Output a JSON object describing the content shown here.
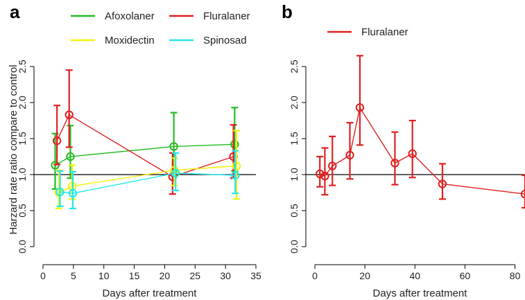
{
  "chart_data": [
    {
      "panel_label": "a",
      "type": "line",
      "xlabel": "Days after treatment",
      "ylabel": "Harzard rate ratio compare to control",
      "xlim": [
        0,
        35
      ],
      "ylim": [
        0,
        2.5
      ],
      "x_ticks": [
        "0",
        "5",
        "10",
        "15",
        "20",
        "25",
        "30",
        "35"
      ],
      "y_ticks": [
        "0.0",
        "0.5",
        "1.0",
        "1.5",
        "2.0",
        "2.5"
      ],
      "reference_line": 1.0,
      "grid": false,
      "legend_position": "top",
      "series": [
        {
          "name": "Afoxolaner",
          "color": "#22bb22",
          "x": [
            2,
            4.5,
            21.5,
            31.5
          ],
          "y": [
            1.13,
            1.25,
            1.39,
            1.42
          ],
          "lower": [
            0.8,
            0.95,
            1.04,
            1.05
          ],
          "upper": [
            1.57,
            1.68,
            1.86,
            1.93
          ]
        },
        {
          "name": "Fluralaner",
          "color": "#e02020",
          "x": [
            2.3,
            4.3,
            21.3,
            31.3
          ],
          "y": [
            1.47,
            1.83,
            0.97,
            1.25
          ],
          "lower": [
            1.14,
            1.38,
            0.73,
            0.95
          ],
          "upper": [
            1.96,
            2.45,
            1.3,
            1.69
          ]
        },
        {
          "name": "Moxidectin",
          "color": "#f2f20a",
          "x": [
            2.6,
            4.8,
            21.6,
            31.8
          ],
          "y": [
            0.75,
            0.84,
            1.06,
            1.12
          ],
          "lower": [
            0.53,
            0.66,
            0.85,
            0.66
          ],
          "upper": [
            1.06,
            1.13,
            1.23,
            1.61
          ]
        },
        {
          "name": "Spinosad",
          "color": "#22e8e8",
          "x": [
            2.8,
            4.9,
            21.8,
            31.6
          ],
          "y": [
            0.76,
            0.74,
            1.02,
            0.99
          ],
          "lower": [
            0.56,
            0.53,
            0.78,
            0.74
          ],
          "upper": [
            1.05,
            1.04,
            1.3,
            1.33
          ]
        }
      ]
    },
    {
      "panel_label": "b",
      "type": "line",
      "xlabel": "Days after treatment",
      "ylabel": "",
      "xlim": [
        0,
        84
      ],
      "ylim": [
        0,
        2.5
      ],
      "x_ticks": [
        "0",
        "20",
        "40",
        "60",
        "80"
      ],
      "y_ticks": [
        "0.0",
        "0.5",
        "1.0",
        "1.5",
        "2.0",
        "2.5"
      ],
      "reference_line": 1.0,
      "grid": false,
      "legend_position": "top-left",
      "series": [
        {
          "name": "Fluralaner",
          "color": "#e02020",
          "x": [
            2,
            4,
            7,
            14,
            18,
            32,
            39,
            51,
            84
          ],
          "y": [
            1.01,
            0.98,
            1.12,
            1.27,
            1.93,
            1.16,
            1.29,
            0.87,
            0.73
          ],
          "lower": [
            0.83,
            0.72,
            0.85,
            0.94,
            1.41,
            0.86,
            0.96,
            0.66,
            0.54
          ],
          "upper": [
            1.25,
            1.37,
            1.53,
            1.72,
            2.65,
            1.59,
            1.75,
            1.15,
            0.99
          ]
        }
      ]
    }
  ]
}
